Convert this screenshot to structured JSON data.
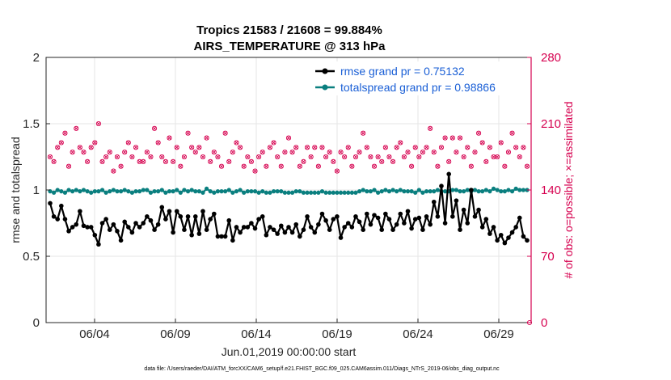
{
  "chart_data": {
    "type": "line",
    "title": "Tropics 21583 / 21608 = 99.884%",
    "subtitle": "AIRS_TEMPERATURE @ 313 hPa",
    "xlabel": "Jun.01,2019 00:00:00 start",
    "ylabel": "rmse and totalspread",
    "y2label": "# of obs: o=possible; ×=assimilated",
    "footer": "data file: /Users/raeder/DAI/ATM_forcXX/CAM6_setup/f.e21.FHIST_BGC.f09_025.CAM6assim.011/Diags_NTrS_2019-06/obs_diag_output.nc",
    "xlim": [
      0,
      30
    ],
    "ylim": [
      0,
      2
    ],
    "y2lim": [
      0,
      280
    ],
    "x_ticks": [
      3,
      8,
      13,
      18,
      23,
      28
    ],
    "x_tick_labels": [
      "06/04",
      "06/09",
      "06/14",
      "06/19",
      "06/24",
      "06/29"
    ],
    "y_ticks": [
      "0",
      "0.5",
      "1",
      "1.5",
      "2"
    ],
    "y2_ticks": [
      "0",
      "70",
      "140",
      "210",
      "280"
    ],
    "grid": true,
    "legend_position": "top-right",
    "series": [
      {
        "name": "rmse grand pr = 0.75132",
        "color": "#000000",
        "axis": "left",
        "values": [
          0.9,
          0.8,
          0.78,
          0.88,
          0.78,
          0.69,
          0.72,
          0.74,
          0.84,
          0.73,
          0.72,
          0.72,
          0.66,
          0.59,
          0.75,
          0.78,
          0.7,
          0.74,
          0.69,
          0.62,
          0.76,
          0.72,
          0.68,
          0.75,
          0.72,
          0.75,
          0.8,
          0.77,
          0.7,
          0.74,
          0.87,
          0.78,
          0.84,
          0.68,
          0.84,
          0.8,
          0.7,
          0.8,
          0.66,
          0.8,
          0.67,
          0.84,
          0.7,
          0.78,
          0.82,
          0.65,
          0.65,
          0.65,
          0.77,
          0.62,
          0.72,
          0.68,
          0.72,
          0.72,
          0.75,
          0.71,
          0.78,
          0.8,
          0.66,
          0.72,
          0.7,
          0.67,
          0.73,
          0.68,
          0.72,
          0.68,
          0.74,
          0.65,
          0.7,
          0.8,
          0.72,
          0.68,
          0.74,
          0.82,
          0.77,
          0.7,
          0.78,
          0.8,
          0.64,
          0.72,
          0.75,
          0.72,
          0.8,
          0.76,
          0.7,
          0.82,
          0.74,
          0.81,
          0.79,
          0.7,
          0.82,
          0.78,
          0.7,
          0.74,
          0.82,
          0.75,
          0.84,
          0.71,
          0.78,
          0.79,
          0.7,
          0.8,
          0.74,
          0.91,
          0.8,
          1.03,
          0.75,
          1.12,
          0.8,
          0.92,
          0.7,
          0.85,
          0.75,
          1.0,
          0.8,
          0.85,
          0.72,
          0.78,
          0.67,
          0.72,
          0.62,
          0.66,
          0.6,
          0.64,
          0.68,
          0.72,
          0.79,
          0.65,
          0.62
        ]
      },
      {
        "name": "totalspread grand pr = 0.98866",
        "color": "#0a7f7f",
        "axis": "left",
        "values": [
          0.99,
          0.98,
          1.0,
          0.99,
          0.98,
          1.0,
          0.99,
          1.0,
          0.99,
          1.0,
          0.99,
          0.98,
          0.99,
          0.99,
          1.0,
          0.98,
          0.99,
          1.0,
          0.99,
          0.99,
          1.0,
          0.99,
          0.98,
          0.99,
          0.99,
          1.0,
          1.0,
          0.98,
          0.99,
          0.99,
          1.0,
          0.98,
          0.99,
          0.99,
          1.0,
          0.98,
          1.0,
          0.99,
          1.0,
          0.99,
          0.99,
          0.98,
          1.01,
          0.99,
          0.98,
          0.99,
          0.99,
          0.99,
          1.0,
          0.98,
          0.99,
          1.0,
          0.98,
          0.99,
          0.99,
          0.99,
          0.98,
          0.99,
          0.98,
          0.98,
          0.99,
          0.99,
          0.99,
          0.98,
          0.98,
          0.98,
          0.99,
          0.99,
          0.98,
          0.98,
          0.98,
          0.98,
          0.98,
          0.99,
          0.98,
          0.98,
          0.98,
          0.98,
          0.98,
          0.98,
          0.98,
          0.98,
          0.98,
          0.99,
          1.0,
          0.99,
          0.99,
          1.0,
          0.98,
          0.99,
          1.0,
          0.99,
          1.0,
          0.99,
          1.0,
          0.99,
          0.99,
          0.99,
          0.98,
          1.0,
          0.98,
          0.99,
          0.99,
          0.99,
          1.0,
          0.99,
          0.99,
          0.99,
          1.0,
          1.0,
          0.99,
          0.99,
          1.0,
          0.99,
          1.0,
          0.99,
          0.99,
          1.0,
          0.99,
          1.01,
          1.0,
          0.99,
          0.99,
          1.0,
          0.99,
          1.01,
          1.0,
          1.0,
          1.0
        ]
      },
      {
        "name": "# of obs (possible/assimilated)",
        "color": "#d6004f",
        "axis": "right",
        "marker": "o-and-x",
        "values": [
          175,
          170,
          185,
          190,
          200,
          165,
          180,
          205,
          185,
          180,
          170,
          185,
          190,
          210,
          170,
          175,
          180,
          160,
          175,
          165,
          180,
          190,
          175,
          185,
          170,
          170,
          180,
          175,
          205,
          190,
          175,
          170,
          195,
          170,
          185,
          165,
          175,
          200,
          185,
          180,
          185,
          175,
          195,
          170,
          180,
          175,
          165,
          200,
          170,
          180,
          190,
          185,
          165,
          175,
          170,
          160,
          175,
          180,
          165,
          185,
          190,
          175,
          165,
          180,
          195,
          180,
          185,
          165,
          170,
          185,
          175,
          185,
          165,
          185,
          175,
          180,
          170,
          160,
          180,
          175,
          185,
          165,
          175,
          180,
          200,
          185,
          175,
          165,
          175,
          170,
          185,
          175,
          170,
          185,
          190,
          175,
          180,
          165,
          185,
          175,
          180,
          185,
          205,
          180,
          165,
          185,
          195,
          170,
          195,
          180,
          195,
          175,
          185,
          165,
          180,
          200,
          190,
          170,
          185,
          175,
          175,
          190,
          165,
          180,
          200,
          185,
          175,
          185,
          165
        ]
      }
    ]
  }
}
